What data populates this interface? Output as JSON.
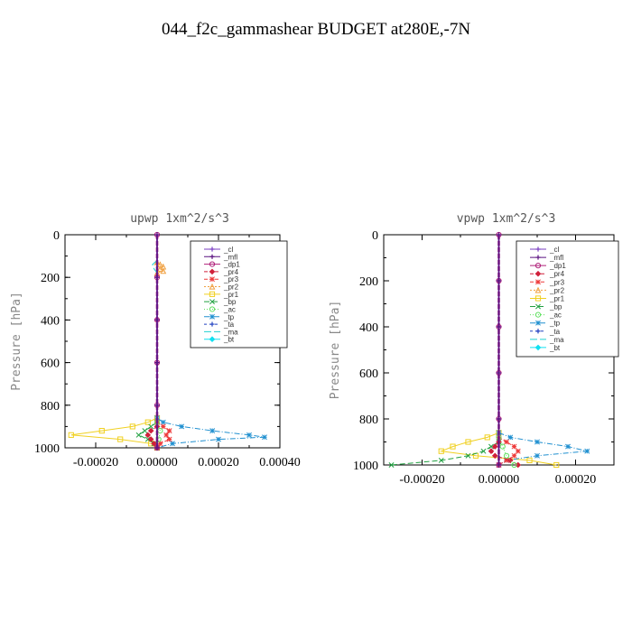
{
  "page_title": "044_f2c_gammashear  BUDGET at280E,-7N",
  "colors": {
    "_cl": "#7a3ec2",
    "_mfl": "#5a1280",
    "_dp1": "#b0207a",
    "_pr4": "#d0203a",
    "_pr3": "#ee3a3a",
    "_pr2": "#f0a040",
    "_pr1": "#f0d020",
    "_bp": "#20a040",
    "_ac": "#60e060",
    "_tp": "#2090d0",
    "_ta": "#2040c0",
    "_ma": "#20d0d0",
    "_bt": "#10e0f0"
  },
  "chart_data": [
    {
      "type": "line",
      "title": "upwp   1xm^2/s^3",
      "ylabel": "Pressure [hPa]",
      "xlim": [
        -0.0003,
        0.0004
      ],
      "ylim": [
        1000,
        0
      ],
      "xticks": [
        "-0.00020",
        "0.00000",
        "0.00020",
        "0.00040"
      ],
      "yticks": [
        "0",
        "200",
        "400",
        "600",
        "800",
        "1000"
      ],
      "legend_position": "top-right",
      "legend": [
        "_cl",
        "_mfl",
        "_dp1",
        "_pr4",
        "_pr3",
        "_pr2",
        "_pr1",
        "_bp",
        "_ac",
        "_tp",
        "_ta",
        "_ma",
        "_bt"
      ],
      "series": [
        {
          "name": "_pr1",
          "p": [
            860,
            880,
            900,
            920,
            940,
            960,
            980,
            1000
          ],
          "v": [
            0.0,
            -3e-05,
            -8e-05,
            -0.00018,
            -0.00028,
            -0.00012,
            -2e-05,
            0.0
          ]
        },
        {
          "name": "_pr2",
          "p": [
            130,
            140,
            150,
            160,
            170,
            180
          ],
          "v": [
            0.0,
            1e-05,
            2e-05,
            1e-05,
            2e-05,
            0.0
          ]
        },
        {
          "name": "_tp",
          "p": [
            860,
            880,
            900,
            920,
            940,
            950,
            960,
            980,
            1000
          ],
          "v": [
            0.0,
            2e-05,
            8e-05,
            0.00018,
            0.0003,
            0.00035,
            0.0002,
            5e-05,
            0.0
          ]
        },
        {
          "name": "_bp",
          "p": [
            880,
            900,
            920,
            940,
            960,
            980,
            1000
          ],
          "v": [
            0.0,
            -2e-05,
            -4e-05,
            -6e-05,
            -3e-05,
            -1e-05,
            0.0
          ]
        },
        {
          "name": "_pr3",
          "p": [
            880,
            900,
            920,
            940,
            960,
            980,
            1000
          ],
          "v": [
            0.0,
            2e-05,
            4e-05,
            3e-05,
            4e-05,
            1e-05,
            0.0
          ]
        },
        {
          "name": "_pr4",
          "p": [
            900,
            920,
            940,
            960,
            980,
            1000
          ],
          "v": [
            0.0,
            -2e-05,
            -3e-05,
            -2e-05,
            -1e-05,
            0.0
          ]
        },
        {
          "name": "_ac",
          "p": [
            880,
            920,
            960,
            1000
          ],
          "v": [
            0.0,
            1e-05,
            5e-06,
            0.0
          ]
        },
        {
          "name": "_ma",
          "p": [
            120,
            140,
            160,
            180
          ],
          "v": [
            0.0,
            -1.5e-05,
            -1e-05,
            0.0
          ]
        },
        {
          "name": "_dp1",
          "p": [
            0,
            200,
            400,
            600,
            800,
            1000
          ],
          "v": [
            0,
            0,
            0,
            0,
            0,
            0
          ]
        },
        {
          "name": "_cl",
          "p": [
            0,
            200,
            400,
            600,
            800,
            1000
          ],
          "v": [
            0,
            0,
            0,
            0,
            0,
            0
          ]
        },
        {
          "name": "_mfl",
          "p": [
            0,
            200,
            400,
            600,
            800,
            1000
          ],
          "v": [
            0,
            0,
            0,
            0,
            0,
            0
          ]
        }
      ]
    },
    {
      "type": "line",
      "title": "vpwp   1xm^2/s^3",
      "ylabel": "Pressure [hPa]",
      "xlim": [
        -0.0003,
        0.0003
      ],
      "ylim": [
        1000,
        0
      ],
      "xticks": [
        "-0.00020",
        "0.00000",
        "0.00020"
      ],
      "yticks": [
        "0",
        "200",
        "400",
        "600",
        "800",
        "1000"
      ],
      "legend_position": "top-right",
      "legend": [
        "_cl",
        "_mfl",
        "_dp1",
        "_pr4",
        "_pr3",
        "_pr2",
        "_pr1",
        "_bp",
        "_ac",
        "_tp",
        "_ta",
        "_ma",
        "_bt"
      ],
      "series": [
        {
          "name": "_pr1",
          "p": [
            860,
            880,
            900,
            920,
            940,
            960,
            980,
            1000
          ],
          "v": [
            0.0,
            -3e-05,
            -8e-05,
            -0.00012,
            -0.00015,
            -6e-05,
            8e-05,
            0.00015
          ]
        },
        {
          "name": "_tp",
          "p": [
            860,
            880,
            900,
            920,
            940,
            960,
            980,
            1000
          ],
          "v": [
            0.0,
            3e-05,
            0.0001,
            0.00018,
            0.00023,
            0.0001,
            2e-05,
            0.0
          ]
        },
        {
          "name": "_bp",
          "p": [
            900,
            920,
            940,
            960,
            980,
            1000
          ],
          "v": [
            0.0,
            -2e-05,
            -4e-05,
            -8e-05,
            -0.00015,
            -0.00028
          ]
        },
        {
          "name": "_pr3",
          "p": [
            880,
            900,
            920,
            940,
            960,
            980,
            1000
          ],
          "v": [
            0.0,
            2e-05,
            4e-05,
            5e-05,
            4e-05,
            2e-05,
            0.0
          ]
        },
        {
          "name": "_pr4",
          "p": [
            900,
            920,
            940,
            960,
            980,
            1000
          ],
          "v": [
            0.0,
            -1e-05,
            -2e-05,
            -1e-05,
            3e-05,
            5e-05
          ]
        },
        {
          "name": "_ac",
          "p": [
            880,
            920,
            960,
            1000
          ],
          "v": [
            0.0,
            1e-05,
            2e-05,
            4e-05
          ]
        },
        {
          "name": "_dp1",
          "p": [
            0,
            200,
            400,
            600,
            800,
            1000
          ],
          "v": [
            0,
            0,
            0,
            0,
            0,
            0
          ]
        },
        {
          "name": "_cl",
          "p": [
            0,
            200,
            400,
            600,
            800,
            1000
          ],
          "v": [
            0,
            0,
            0,
            0,
            0,
            0
          ]
        },
        {
          "name": "_mfl",
          "p": [
            0,
            200,
            400,
            600,
            800,
            1000
          ],
          "v": [
            0,
            0,
            0,
            0,
            0,
            0
          ]
        }
      ]
    }
  ]
}
